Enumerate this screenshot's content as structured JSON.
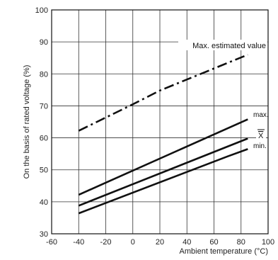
{
  "chart_data": {
    "type": "line",
    "xlabel": "Ambient temperature (°C)",
    "ylabel": "On the basis of rated voltage (%)",
    "xlim": [
      -60,
      100
    ],
    "ylim": [
      30,
      100
    ],
    "x_ticks": [
      -60,
      -40,
      -20,
      0,
      20,
      40,
      60,
      80,
      100
    ],
    "y_ticks": [
      30,
      40,
      50,
      60,
      70,
      80,
      90,
      100
    ],
    "grid": true,
    "series": [
      {
        "name": "Max. estimated value",
        "style": "dashdot",
        "x": [
          -40,
          0,
          20,
          85
        ],
        "y": [
          62.2,
          70.5,
          74.8,
          86
        ]
      },
      {
        "name": "max.",
        "style": "solid",
        "x": [
          -40,
          85
        ],
        "y": [
          42.2,
          65.8
        ]
      },
      {
        "name": "X",
        "style": "solid",
        "x": [
          -40,
          85
        ],
        "y": [
          38.8,
          59.8
        ]
      },
      {
        "name": "min.",
        "style": "solid",
        "x": [
          -40,
          70,
          85
        ],
        "y": [
          36.4,
          54.2,
          56.5
        ]
      }
    ],
    "annotations": [
      {
        "text": "Max. estimated value",
        "series": 0
      },
      {
        "text": "max.",
        "series": 1
      },
      {
        "text": "X",
        "series": 2,
        "overline": true
      },
      {
        "text": "min.",
        "series": 3
      }
    ]
  }
}
